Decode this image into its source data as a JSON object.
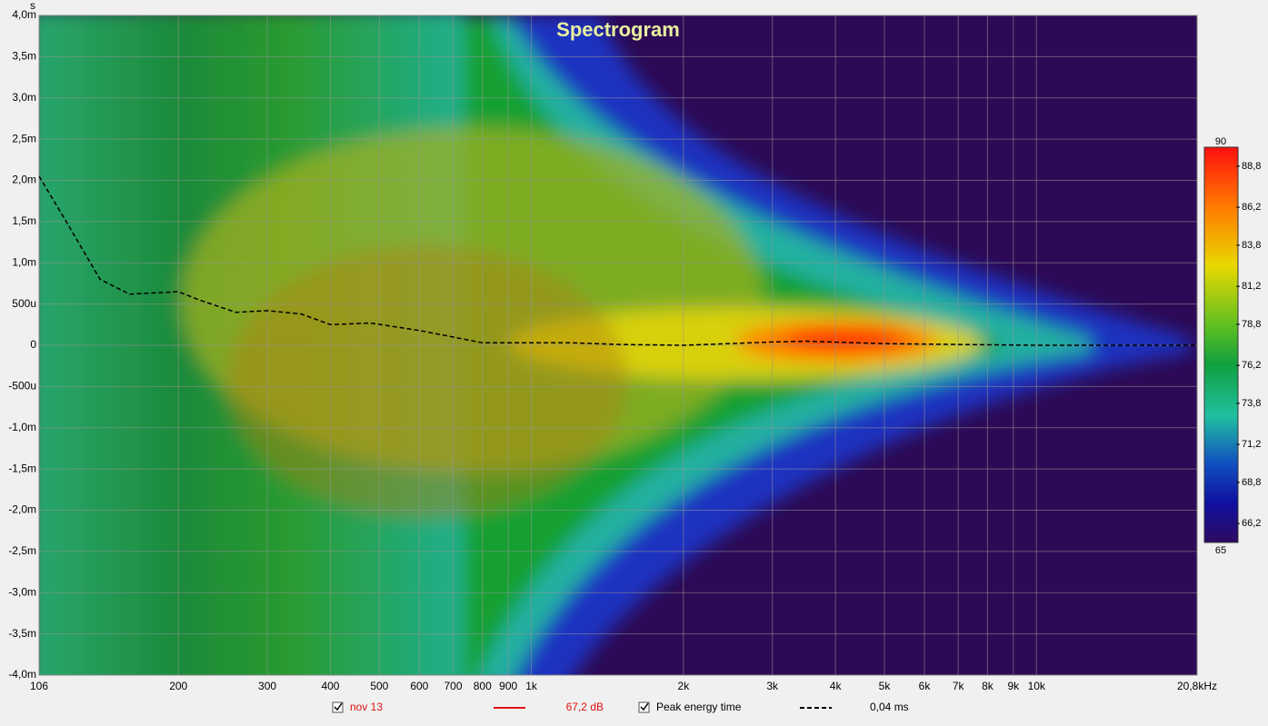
{
  "chart_data": {
    "type": "spectrogram",
    "title": "Spectrogram",
    "y_label": "s",
    "log_x": true,
    "grid": true,
    "xlim": [
      106,
      20800
    ],
    "xticks": [
      106,
      200,
      300,
      400,
      500,
      600,
      700,
      800,
      900,
      {
        "value": 1000,
        "label": "1k"
      },
      {
        "value": 2000,
        "label": "2k"
      },
      {
        "value": 3000,
        "label": "3k"
      },
      {
        "value": 4000,
        "label": "4k"
      },
      {
        "value": 5000,
        "label": "5k"
      },
      {
        "value": 6000,
        "label": "6k"
      },
      {
        "value": 7000,
        "label": "7k"
      },
      {
        "value": 8000,
        "label": "8k"
      },
      {
        "value": 9000,
        "label": "9k"
      },
      {
        "value": 10000,
        "label": "10k"
      },
      {
        "value": 20800,
        "label": "20,8kHz"
      }
    ],
    "ylim": [
      -0.004,
      0.004
    ],
    "yticks": [
      {
        "value": 0.004,
        "label": "4,0m"
      },
      {
        "value": 0.0035,
        "label": "3,5m"
      },
      {
        "value": 0.003,
        "label": "3,0m"
      },
      {
        "value": 0.0025,
        "label": "2,5m"
      },
      {
        "value": 0.002,
        "label": "2,0m"
      },
      {
        "value": 0.0015,
        "label": "1,5m"
      },
      {
        "value": 0.001,
        "label": "1,0m"
      },
      {
        "value": 0.0005,
        "label": "500u"
      },
      0,
      {
        "value": -0.0005,
        "label": "-500u"
      },
      {
        "value": -0.001,
        "label": "-1,0m"
      },
      {
        "value": -0.0015,
        "label": "-1,5m"
      },
      {
        "value": -0.002,
        "label": "-2,0m"
      },
      {
        "value": -0.0025,
        "label": "-2,5m"
      },
      {
        "value": -0.003,
        "label": "-3,0m"
      },
      {
        "value": -0.0035,
        "label": "-3,5m"
      },
      {
        "value": -0.004,
        "label": "-4,0m"
      }
    ],
    "clim": [
      65,
      90
    ],
    "cticks": [
      {
        "value": 88.8,
        "label": "88,8"
      },
      {
        "value": 86.2,
        "label": "86,2"
      },
      {
        "value": 83.8,
        "label": "83,8"
      },
      {
        "value": 81.2,
        "label": "81,2"
      },
      {
        "value": 78.8,
        "label": "78,8"
      },
      {
        "value": 76.2,
        "label": "76,2"
      },
      {
        "value": 73.8,
        "label": "73,8"
      },
      {
        "value": 71.2,
        "label": "71,2"
      },
      {
        "value": 68.8,
        "label": "68,8"
      },
      {
        "value": 66.2,
        "label": "66,2"
      }
    ],
    "measurement": {
      "name": "nov 13",
      "color": "#e01010",
      "label": "67,2 dB"
    },
    "series": [
      {
        "name": "Peak energy time",
        "color": "#000000",
        "value_label": "0,04 ms",
        "x": [
          106,
          120,
          140,
          160,
          200,
          220,
          260,
          300,
          350,
          400,
          480,
          600,
          700,
          800,
          1000,
          1200,
          1500,
          2000,
          3000,
          3500,
          5000,
          10000,
          20800
        ],
        "values": [
          0.00205,
          0.0015,
          0.0008,
          0.00062,
          0.00065,
          0.00055,
          0.0004,
          0.00042,
          0.00038,
          0.00025,
          0.00027,
          0.00018,
          0.0001,
          3e-05,
          3e-05,
          3e-05,
          1e-05,
          0,
          4e-05,
          5e-05,
          2e-05,
          0,
          0
        ]
      }
    ]
  }
}
